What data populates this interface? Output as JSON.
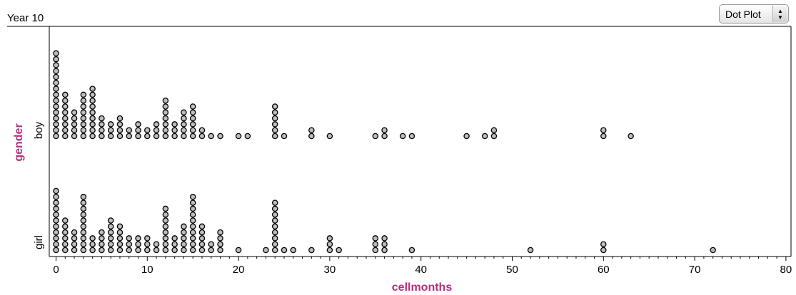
{
  "header": {
    "title": "Year 10",
    "plot_type_label": "Dot Plot"
  },
  "chart_data": {
    "type": "dot plot",
    "xlabel": "cellmonths",
    "ylabel": "gender",
    "xlim": [
      -1,
      81
    ],
    "x_ticks": [
      0,
      10,
      20,
      30,
      40,
      50,
      60,
      70,
      80
    ],
    "categories": [
      "boy",
      "girl"
    ],
    "marker_color": "#bdbdbd",
    "label_color": "#b0307f",
    "series": [
      {
        "name": "boy",
        "counts": [
          [
            0,
            15
          ],
          [
            1,
            8
          ],
          [
            2,
            5
          ],
          [
            3,
            8
          ],
          [
            4,
            9
          ],
          [
            5,
            4
          ],
          [
            6,
            3
          ],
          [
            7,
            4
          ],
          [
            8,
            2
          ],
          [
            9,
            3
          ],
          [
            10,
            2
          ],
          [
            11,
            3
          ],
          [
            12,
            7
          ],
          [
            13,
            3
          ],
          [
            14,
            5
          ],
          [
            15,
            6
          ],
          [
            16,
            2
          ],
          [
            17,
            1
          ],
          [
            18,
            1
          ],
          [
            20,
            1
          ],
          [
            21,
            1
          ],
          [
            24,
            6
          ],
          [
            25,
            1
          ],
          [
            28,
            2
          ],
          [
            30,
            1
          ],
          [
            35,
            1
          ],
          [
            36,
            2
          ],
          [
            38,
            1
          ],
          [
            39,
            1
          ],
          [
            45,
            1
          ],
          [
            47,
            1
          ],
          [
            48,
            2
          ],
          [
            60,
            2
          ],
          [
            63,
            1
          ]
        ]
      },
      {
        "name": "girl",
        "counts": [
          [
            0,
            11
          ],
          [
            1,
            6
          ],
          [
            2,
            4
          ],
          [
            3,
            10
          ],
          [
            4,
            3
          ],
          [
            5,
            4
          ],
          [
            6,
            6
          ],
          [
            7,
            5
          ],
          [
            8,
            3
          ],
          [
            9,
            3
          ],
          [
            10,
            3
          ],
          [
            11,
            2
          ],
          [
            12,
            8
          ],
          [
            13,
            3
          ],
          [
            14,
            5
          ],
          [
            15,
            10
          ],
          [
            16,
            5
          ],
          [
            17,
            2
          ],
          [
            18,
            4
          ],
          [
            20,
            1
          ],
          [
            23,
            1
          ],
          [
            24,
            9
          ],
          [
            25,
            1
          ],
          [
            26,
            1
          ],
          [
            28,
            1
          ],
          [
            30,
            3
          ],
          [
            31,
            1
          ],
          [
            35,
            3
          ],
          [
            36,
            3
          ],
          [
            39,
            1
          ],
          [
            52,
            1
          ],
          [
            60,
            2
          ],
          [
            72,
            1
          ]
        ]
      }
    ]
  }
}
